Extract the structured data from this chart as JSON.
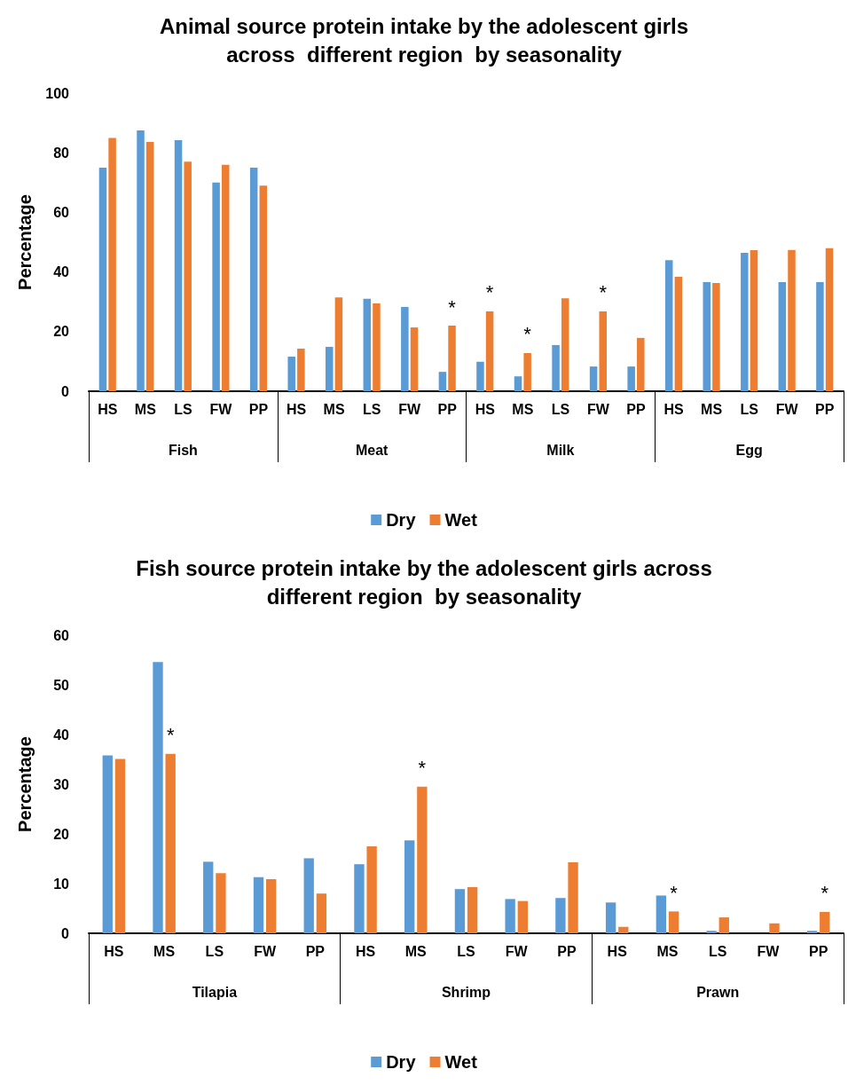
{
  "chart_data": [
    {
      "type": "bar",
      "title": "Animal source protein intake by the adolescent girls\nacross  different region  by seasonality",
      "ylabel": "Percentage",
      "categories": [
        "HS",
        "MS",
        "LS",
        "FW",
        "PP",
        "HS",
        "MS",
        "LS",
        "FW",
        "PP",
        "HS",
        "MS",
        "LS",
        "FW",
        "PP",
        "HS",
        "MS",
        "LS",
        "FW",
        "PP"
      ],
      "annotations": [
        "Fish",
        "Meat",
        "Milk",
        "Egg"
      ],
      "series": [
        {
          "name": "Dry",
          "color": "#5b9bd5",
          "values": [
            75,
            87.5,
            84.2,
            70,
            75,
            11.6,
            14.9,
            31,
            28.3,
            6.5,
            9.9,
            5,
            15.5,
            8.3,
            8.3,
            44,
            36.6,
            46.4,
            36.6,
            36.6
          ]
        },
        {
          "name": "Wet",
          "color": "#ed7d31",
          "values": [
            85,
            83.6,
            77,
            76,
            69,
            14.3,
            31.5,
            29.5,
            21.4,
            22,
            26.8,
            12.8,
            31.2,
            26.8,
            17.9,
            38.4,
            36.3,
            47.3,
            47.4,
            48
          ],
          "value_labels": [
            null,
            null,
            null,
            null,
            null,
            null,
            null,
            null,
            null,
            "*",
            "*",
            "*",
            null,
            "*",
            null,
            null,
            null,
            null,
            null,
            null
          ]
        }
      ],
      "ylim": [
        0,
        100
      ],
      "yticks": [
        0,
        20,
        40,
        60,
        80,
        100
      ],
      "grid": false,
      "legend": "bottom"
    },
    {
      "type": "bar",
      "title": "Fish source protein intake by the adolescent girls across\ndifferent region  by seasonality",
      "ylabel": "Percentage",
      "categories": [
        "HS",
        "MS",
        "LS",
        "FW",
        "PP",
        "HS",
        "MS",
        "LS",
        "FW",
        "PP",
        "HS",
        "MS",
        "LS",
        "FW",
        "PP"
      ],
      "annotations": [
        "Tilapia",
        "Shrimp",
        "Prawn"
      ],
      "series": [
        {
          "name": "Dry",
          "color": "#5b9bd5",
          "values": [
            35.8,
            54.6,
            14.4,
            11.3,
            15.1,
            13.9,
            18.7,
            8.9,
            6.9,
            7.1,
            6.2,
            7.6,
            0.5,
            0,
            0.5
          ]
        },
        {
          "name": "Wet",
          "color": "#ed7d31",
          "values": [
            35.1,
            36.1,
            12.1,
            10.9,
            8.0,
            17.5,
            29.5,
            9.3,
            6.5,
            14.3,
            1.3,
            4.4,
            3.2,
            2.0,
            4.3
          ],
          "value_labels": [
            null,
            "*",
            null,
            null,
            null,
            null,
            "*",
            null,
            null,
            null,
            null,
            "*",
            null,
            null,
            "*"
          ]
        }
      ],
      "ylim": [
        0,
        60
      ],
      "yticks": [
        0,
        10,
        20,
        30,
        40,
        50,
        60
      ],
      "grid": false,
      "legend": "bottom"
    }
  ]
}
